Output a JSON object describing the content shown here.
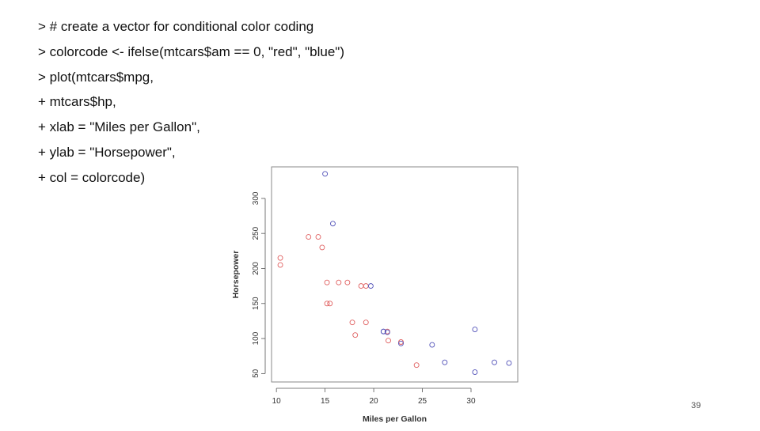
{
  "code_lines": [
    "> # create a vector for conditional color coding",
    "> colorcode <- ifelse(mtcars$am == 0, \"red\", \"blue\")",
    "> plot(mtcars$mpg,",
    "+ mtcars$hp,",
    "+ xlab = \"Miles per Gallon\",",
    "+ ylab = \"Horsepower\",",
    "+ col = colorcode)"
  ],
  "page_number": "39",
  "colors": {
    "red": "#e06060",
    "blue": "#5050b8",
    "text": "#111111"
  },
  "chart_data": {
    "type": "scatter",
    "xlabel": "Miles per Gallon",
    "ylabel": "Horsepower",
    "xlim": [
      10,
      35
    ],
    "ylim": [
      50,
      335
    ],
    "x_ticks": [
      "10",
      "15",
      "20",
      "25",
      "30"
    ],
    "y_ticks": [
      "50",
      "100",
      "150",
      "200",
      "250",
      "300"
    ],
    "x_tick_values": [
      10,
      15,
      20,
      25,
      30
    ],
    "y_tick_values": [
      50,
      100,
      150,
      200,
      250,
      300
    ],
    "grid": false,
    "series": [
      {
        "color": "red",
        "points": [
          [
            21.4,
            110
          ],
          [
            18.7,
            175
          ],
          [
            18.1,
            105
          ],
          [
            14.3,
            245
          ],
          [
            24.4,
            62
          ],
          [
            22.8,
            95
          ],
          [
            19.2,
            123
          ],
          [
            17.8,
            123
          ],
          [
            16.4,
            180
          ],
          [
            17.3,
            180
          ],
          [
            15.2,
            180
          ],
          [
            10.4,
            205
          ],
          [
            10.4,
            215
          ],
          [
            14.7,
            230
          ],
          [
            21.5,
            97
          ],
          [
            15.5,
            150
          ],
          [
            15.2,
            150
          ],
          [
            13.3,
            245
          ],
          [
            19.2,
            175
          ]
        ]
      },
      {
        "color": "blue",
        "points": [
          [
            21.0,
            110
          ],
          [
            21.0,
            110
          ],
          [
            22.8,
            93
          ],
          [
            32.4,
            66
          ],
          [
            30.4,
            52
          ],
          [
            33.9,
            65
          ],
          [
            27.3,
            66
          ],
          [
            26.0,
            91
          ],
          [
            30.4,
            113
          ],
          [
            15.8,
            264
          ],
          [
            19.7,
            175
          ],
          [
            15.0,
            335
          ],
          [
            21.4,
            109
          ]
        ]
      }
    ]
  }
}
